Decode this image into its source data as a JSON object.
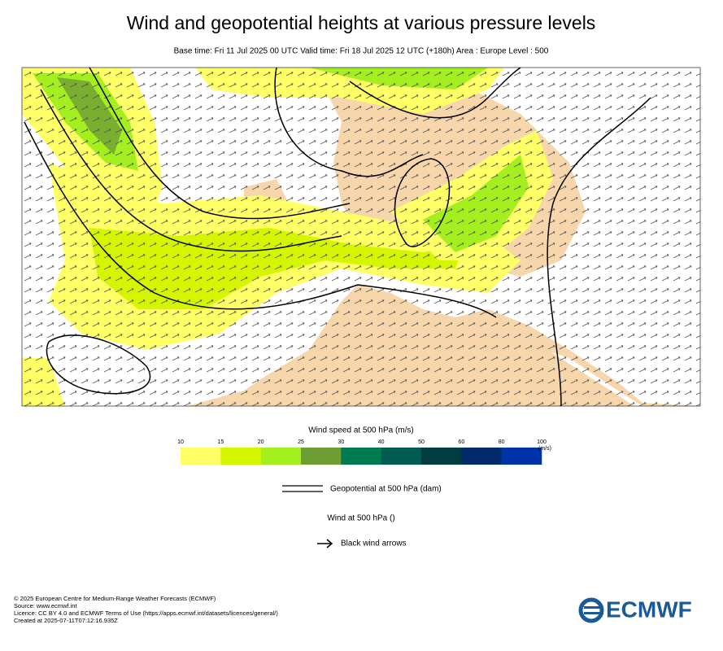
{
  "title": "Wind and geopotential heights at various pressure levels",
  "subtitle": "Base time: Fri 11 Jul 2025 00 UTC Valid time: Fri 18 Jul 2025 12 UTC (+180h) Area : Europe Level : 500",
  "colorbar": {
    "title": "Wind speed at 500 hPa (m/s)",
    "ticks": [
      10,
      15,
      20,
      25,
      30,
      40,
      50,
      60,
      80,
      100
    ],
    "unit": "(m/s)",
    "colors": [
      "#ffff66",
      "#d4f700",
      "#a3f01e",
      "#6e9e33",
      "#007a4f",
      "#005c50",
      "#003c40",
      "#002a6a",
      "#0033aa"
    ]
  },
  "legend": [
    "Geopotential at 500 hPa (dam)",
    "Wind at 500 hPa ()",
    "Black wind arrows"
  ],
  "footer": [
    "© 2025 European Centre for Medium-Range Weather Forecasts (ECMWF)",
    "Source: www.ecmwf.int",
    "Licence: CC BY 4.0 and ECMWF Terms of Use (https://apps.ecmwf.int/datasets/licences/general/)",
    "Created at 2025-07-11T07:12:16.935Z"
  ],
  "logo": "ECMWF"
}
